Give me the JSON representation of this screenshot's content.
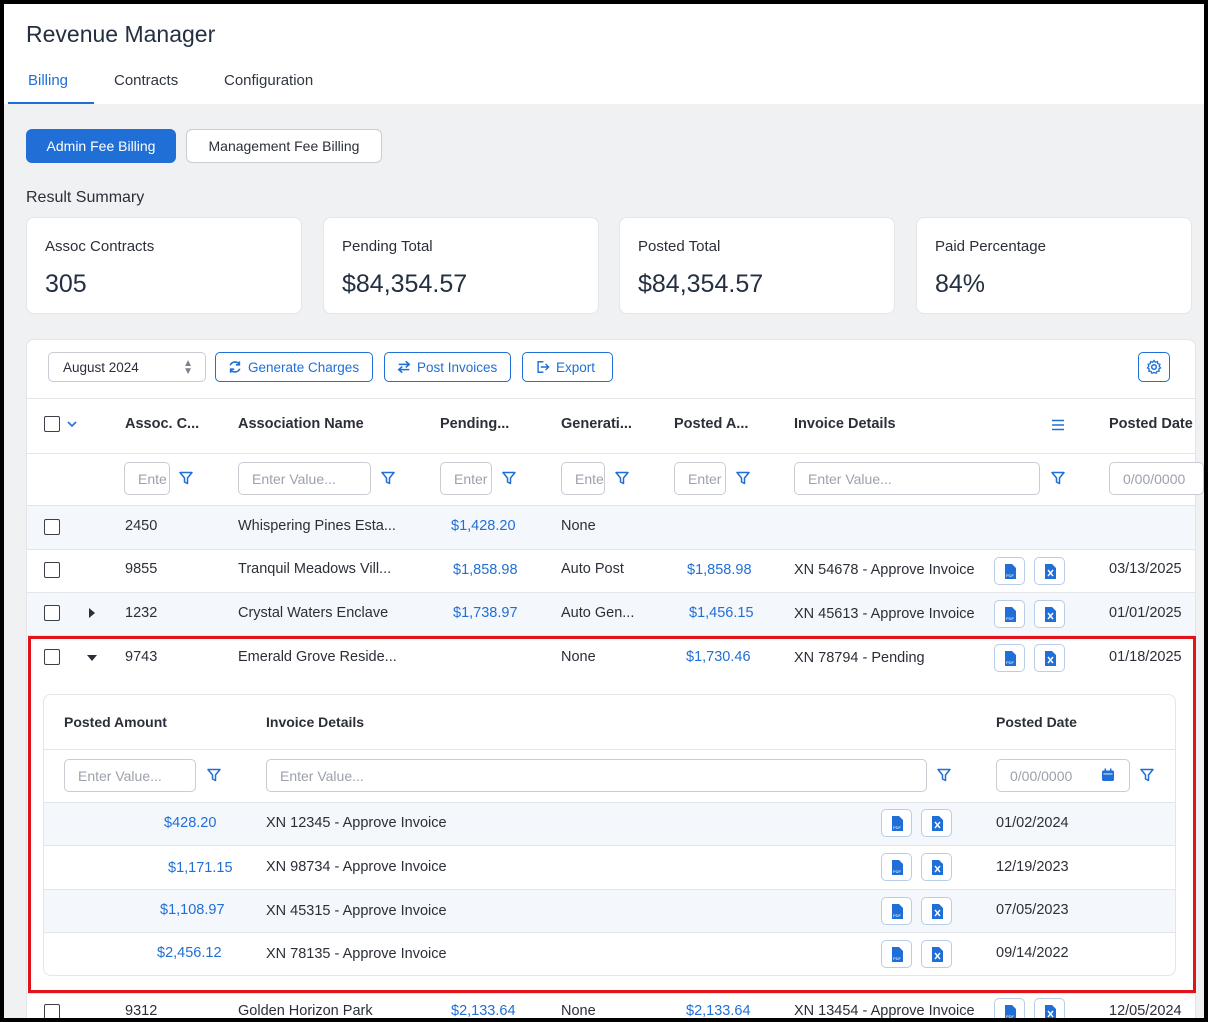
{
  "app": {
    "title": "Revenue Manager"
  },
  "tabs": [
    {
      "label": "Billing",
      "active": true
    },
    {
      "label": "Contracts",
      "active": false
    },
    {
      "label": "Configuration",
      "active": false
    }
  ],
  "billing_types": {
    "admin": "Admin Fee Billing",
    "management": "Management Fee Billing",
    "selected": "Admin Fee Billing"
  },
  "summary": {
    "title": "Result Summary",
    "cards": [
      {
        "label": "Assoc Contracts",
        "value": "305"
      },
      {
        "label": "Pending Total",
        "value": "$84,354.57"
      },
      {
        "label": "Posted Total",
        "value": "$84,354.57"
      },
      {
        "label": "Paid Percentage",
        "value": "84%"
      }
    ]
  },
  "toolbar": {
    "month": "August 2024",
    "generate": "Generate Charges",
    "post": "Post Invoices",
    "export": "Export"
  },
  "columns": {
    "assoc_code": "Assoc. C...",
    "assoc_name": "Association Name",
    "pending": "Pending...",
    "generation": "Generati...",
    "posted_amount": "Posted A...",
    "invoice_details": "Invoice Details",
    "posted_date": "Posted Date"
  },
  "filters": {
    "short_placeholder": "Ente",
    "mid_placeholder": "Enter",
    "placeholder": "Enter Value...",
    "date_placeholder": "0/00/0000"
  },
  "rows": [
    {
      "code": "2450",
      "name": "Whispering Pines Esta...",
      "pending": "$1,428.20",
      "generation": "None",
      "posted": "",
      "invoice": "",
      "date": ""
    },
    {
      "code": "9855",
      "name": "Tranquil Meadows Vill...",
      "pending": "$1,858.98",
      "generation": "Auto Post",
      "posted": "$1,858.98",
      "invoice": "XN 54678 - Approve Invoice",
      "date": "03/13/2025"
    },
    {
      "code": "1232",
      "name": "Crystal Waters Enclave",
      "pending": "$1,738.97",
      "generation": "Auto Gen...",
      "posted": "$1,456.15",
      "invoice": "XN 45613 - Approve Invoice",
      "date": "01/01/2025"
    },
    {
      "code": "9743",
      "name": "Emerald Grove Reside...",
      "pending": "",
      "generation": "None",
      "posted": "$1,730.46",
      "invoice": "XN 78794 - Pending",
      "date": "01/18/2025"
    },
    {
      "code": "9312",
      "name": "Golden Horizon Park",
      "pending": "$2,133.64",
      "generation": "None",
      "posted": "$2,133.64",
      "invoice": "XN 13454 - Approve Invoice",
      "date": "12/05/2024"
    }
  ],
  "detail": {
    "columns": {
      "posted_amount": "Posted Amount",
      "invoice_details": "Invoice Details",
      "posted_date": "Posted Date"
    },
    "rows": [
      {
        "amount": "$428.20",
        "invoice": "XN 12345 - Approve Invoice",
        "date": "01/02/2024"
      },
      {
        "amount": "$1,171.15",
        "invoice": "XN 98734 - Approve Invoice",
        "date": "12/19/2023"
      },
      {
        "amount": "$1,108.97",
        "invoice": "XN 45315 - Approve Invoice",
        "date": "07/05/2023"
      },
      {
        "amount": "$2,456.12",
        "invoice": "XN 78135 - Approve Invoice",
        "date": "09/14/2022"
      }
    ]
  },
  "colors": {
    "accent": "#1f6fd6",
    "highlight": "#e0131a",
    "row_alt": "#f4f7fb"
  },
  "icons": [
    "sync-icon",
    "swap-icon",
    "export-icon",
    "gear-icon",
    "filter-icon",
    "pdf-file-icon",
    "excel-file-icon",
    "menu-icon",
    "calendar-icon",
    "chevron-down-icon",
    "caret-right-icon",
    "caret-down-icon"
  ]
}
